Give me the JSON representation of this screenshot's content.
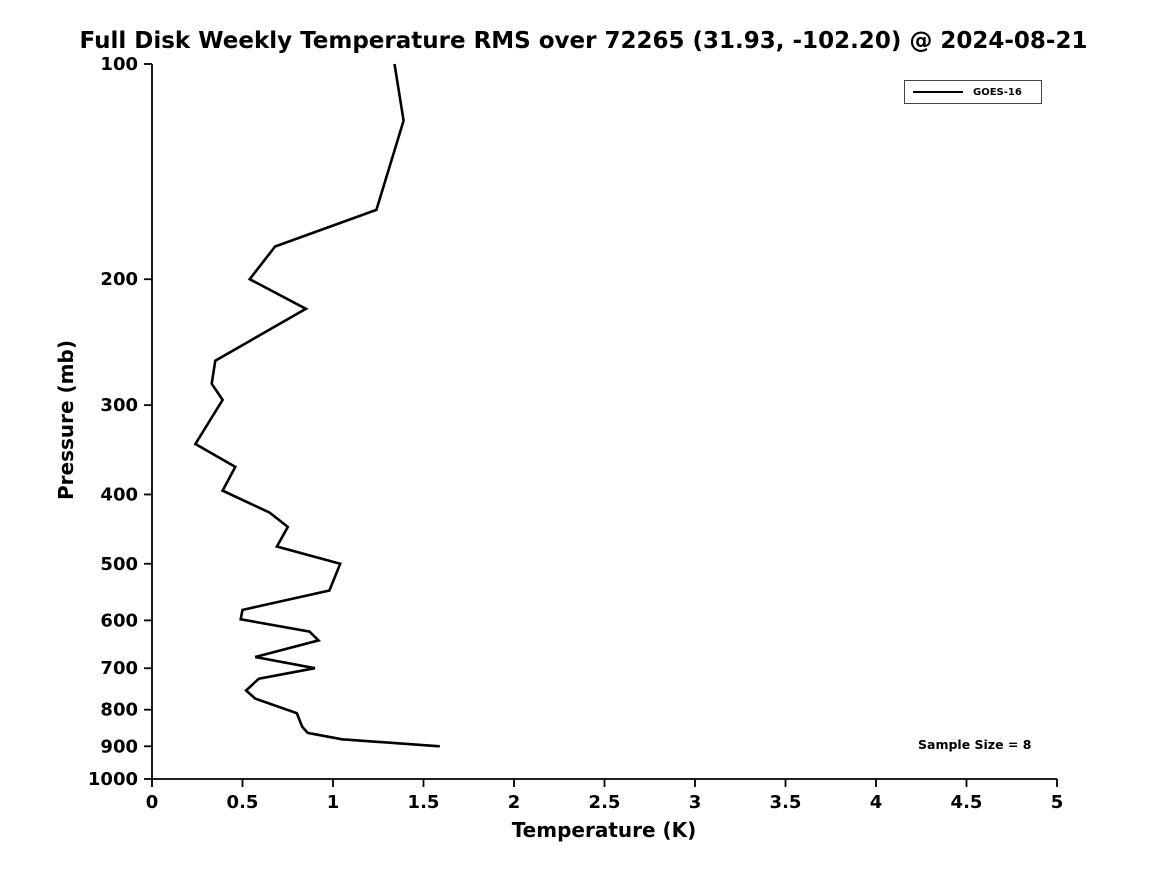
{
  "title": "Full Disk Weekly Temperature RMS over 72265 (31.93, -102.20) @ 2024-08-21",
  "chart_data": {
    "type": "line",
    "title": "Full Disk Weekly Temperature RMS over 72265 (31.93, -102.20) @ 2024-08-21",
    "xlabel": "Temperature (K)",
    "ylabel": "Pressure (mb)",
    "xlim": [
      0,
      5
    ],
    "ylim": [
      100,
      1000
    ],
    "y_scale": "log",
    "y_inverted": true,
    "grid": false,
    "legend_position": "top-right",
    "axis_color": "#000000",
    "line_color": "#000000",
    "line_width": 2.6,
    "x_ticks": {
      "values": [
        0,
        0.5,
        1,
        1.5,
        2,
        2.5,
        3,
        3.5,
        4,
        4.5,
        5
      ],
      "labels": [
        "0",
        "0.5",
        "1",
        "1.5",
        "2",
        "2.5",
        "3",
        "3.5",
        "4",
        "4.5",
        "5"
      ]
    },
    "y_ticks": {
      "values": [
        100,
        200,
        300,
        400,
        500,
        600,
        700,
        800,
        900,
        1000
      ],
      "labels": [
        "100",
        "200",
        "300",
        "400",
        "500",
        "600",
        "700",
        "800",
        "900",
        "1000"
      ]
    },
    "series": [
      {
        "name": "GOES-16",
        "color": "#000000",
        "pressure_mb": [
          100,
          120,
          160,
          180,
          200,
          220,
          260,
          280,
          295,
          340,
          366,
          395,
          424,
          444,
          473,
          500,
          545,
          580,
          598,
          622,
          640,
          675,
          700,
          724,
          752,
          772,
          809,
          845,
          862,
          880,
          900
        ],
        "rms_k": [
          1.34,
          1.39,
          1.24,
          0.68,
          0.54,
          0.85,
          0.35,
          0.33,
          0.39,
          0.24,
          0.46,
          0.39,
          0.65,
          0.75,
          0.69,
          1.04,
          0.98,
          0.5,
          0.49,
          0.87,
          0.92,
          0.57,
          0.9,
          0.59,
          0.52,
          0.57,
          0.8,
          0.83,
          0.86,
          1.05,
          1.59
        ]
      }
    ],
    "annotations": [
      {
        "text": "Sample Size = 8"
      }
    ]
  }
}
